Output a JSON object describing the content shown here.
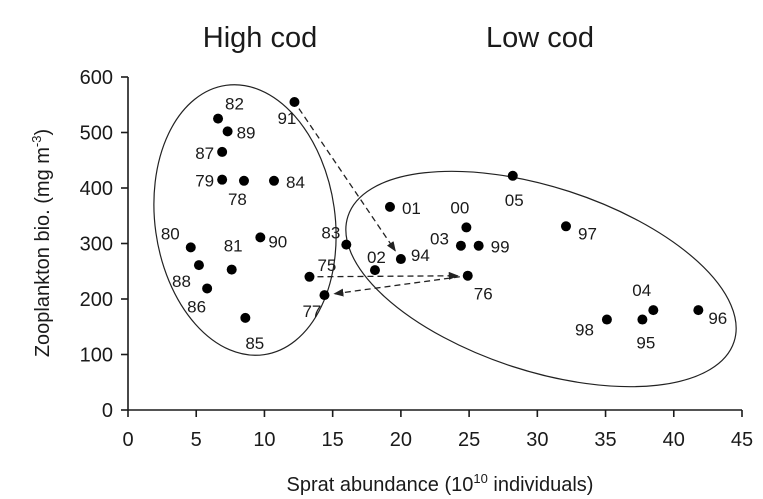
{
  "chart_data": {
    "type": "scatter",
    "title": "",
    "xlabel": "Sprat abundance (10",
    "xlabel_sup": "10",
    "xlabel_tail": " individuals)",
    "ylabel": "Zooplankton bio. (mg m",
    "ylabel_sup": "-3",
    "ylabel_tail": ")",
    "xlim": [
      0,
      45
    ],
    "ylim": [
      0,
      600
    ],
    "x_ticks": [
      0,
      5,
      10,
      15,
      20,
      25,
      30,
      35,
      40,
      45
    ],
    "y_ticks": [
      0,
      100,
      200,
      300,
      400,
      500,
      600
    ],
    "grid": false,
    "groups": [
      {
        "label": "High cod",
        "years": [
          "75",
          "77",
          "78",
          "79",
          "80",
          "81",
          "82",
          "84",
          "85",
          "86",
          "87",
          "88",
          "89",
          "90",
          "91"
        ]
      },
      {
        "label": "Low cod",
        "years": [
          "76",
          "83",
          "94",
          "96",
          "97",
          "98",
          "99",
          "00",
          "01",
          "02",
          "03",
          "04",
          "05",
          "95"
        ]
      }
    ],
    "points": [
      {
        "label": "82",
        "x": 6.6,
        "y": 525
      },
      {
        "label": "89",
        "x": 7.3,
        "y": 502
      },
      {
        "label": "87",
        "x": 6.9,
        "y": 465
      },
      {
        "label": "79",
        "x": 6.9,
        "y": 415
      },
      {
        "label": "78",
        "x": 8.5,
        "y": 413
      },
      {
        "label": "84",
        "x": 10.7,
        "y": 413
      },
      {
        "label": "91",
        "x": 12.2,
        "y": 555
      },
      {
        "label": "80",
        "x": 4.6,
        "y": 293
      },
      {
        "label": "88",
        "x": 5.2,
        "y": 261
      },
      {
        "label": "86",
        "x": 5.8,
        "y": 219
      },
      {
        "label": "81",
        "x": 7.6,
        "y": 253
      },
      {
        "label": "90",
        "x": 9.7,
        "y": 311
      },
      {
        "label": "85",
        "x": 8.6,
        "y": 166
      },
      {
        "label": "75",
        "x": 13.3,
        "y": 240
      },
      {
        "label": "77",
        "x": 14.4,
        "y": 207
      },
      {
        "label": "83",
        "x": 16.0,
        "y": 298
      },
      {
        "label": "02",
        "x": 18.1,
        "y": 252
      },
      {
        "label": "94",
        "x": 20.0,
        "y": 272
      },
      {
        "label": "01",
        "x": 19.2,
        "y": 366
      },
      {
        "label": "00",
        "x": 24.8,
        "y": 329
      },
      {
        "label": "03",
        "x": 24.4,
        "y": 296
      },
      {
        "label": "99",
        "x": 25.7,
        "y": 296
      },
      {
        "label": "76",
        "x": 24.9,
        "y": 242
      },
      {
        "label": "05",
        "x": 28.2,
        "y": 422
      },
      {
        "label": "97",
        "x": 32.1,
        "y": 331
      },
      {
        "label": "98",
        "x": 35.1,
        "y": 163
      },
      {
        "label": "95",
        "x": 37.7,
        "y": 163
      },
      {
        "label": "04",
        "x": 38.5,
        "y": 180
      },
      {
        "label": "96",
        "x": 41.8,
        "y": 180
      }
    ],
    "arrows": [
      {
        "from": "91",
        "to": "94"
      },
      {
        "from": "75",
        "to": "76"
      },
      {
        "from": "76",
        "to": "77"
      }
    ],
    "colors": {
      "marker": "#000000",
      "text": "#1a1a1a",
      "background": "#ffffff"
    }
  }
}
